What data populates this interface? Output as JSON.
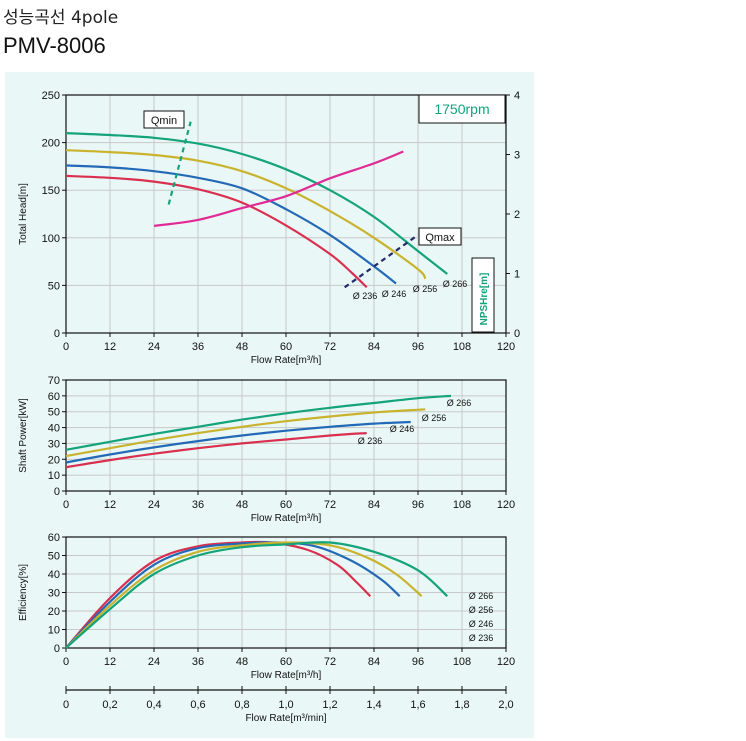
{
  "header": {
    "subtitle": "성능곡선 4pole",
    "model": "PMV-8006"
  },
  "rpm_label": "1750rpm",
  "colors": {
    "d236": "#d93050",
    "d246": "#2469b6",
    "d256": "#c9b32e",
    "d266": "#14a37a",
    "npsh": "#e02a95",
    "bg": "#e9f8f6"
  },
  "chart_data": [
    {
      "type": "line",
      "id": "head",
      "xlabel": "Flow Rate[m³/h]",
      "ylabel": "Total Head[m]",
      "y2label": "NPSHre[m]",
      "xlim": [
        0,
        120
      ],
      "ylim": [
        0,
        250
      ],
      "y2lim": [
        0,
        4
      ],
      "xticks": [
        0,
        12,
        24,
        36,
        48,
        60,
        72,
        84,
        96,
        108,
        120
      ],
      "yticks": [
        0,
        50,
        100,
        150,
        200,
        250
      ],
      "y2ticks": [
        0,
        1,
        2,
        3,
        4
      ],
      "annotations": [
        "Qmin",
        "Qmax",
        "1750rpm"
      ],
      "series": [
        {
          "name": "Ø 236",
          "x": [
            0,
            12,
            24,
            36,
            48,
            60,
            72,
            78,
            82
          ],
          "y": [
            165,
            163,
            159,
            151,
            137,
            113,
            83,
            63,
            48
          ]
        },
        {
          "name": "Ø 246",
          "x": [
            0,
            12,
            24,
            36,
            48,
            60,
            72,
            84,
            90
          ],
          "y": [
            176,
            174,
            170,
            163,
            152,
            130,
            103,
            70,
            52
          ]
        },
        {
          "name": "Ø 256",
          "x": [
            0,
            12,
            24,
            36,
            48,
            60,
            72,
            84,
            96,
            98
          ],
          "y": [
            192,
            190,
            187,
            181,
            170,
            152,
            128,
            100,
            67,
            57
          ]
        },
        {
          "name": "Ø 266",
          "x": [
            0,
            12,
            24,
            36,
            48,
            60,
            72,
            84,
            96,
            104
          ],
          "y": [
            210,
            208,
            205,
            199,
            188,
            172,
            150,
            122,
            86,
            62
          ]
        }
      ],
      "npsh": {
        "x": [
          24,
          36,
          48,
          60,
          72,
          84,
          92
        ],
        "y": [
          1.8,
          1.9,
          2.1,
          2.3,
          2.6,
          2.85,
          3.05
        ]
      },
      "qmin": {
        "x": [
          28,
          34
        ],
        "y": [
          135,
          222
        ]
      },
      "qmax": {
        "x": [
          76,
          96
        ],
        "y": [
          48,
          103
        ]
      }
    },
    {
      "type": "line",
      "id": "power",
      "xlabel": "Flow Rate[m³/h]",
      "ylabel": "Shaft Power[kW]",
      "xlim": [
        0,
        120
      ],
      "ylim": [
        0,
        70
      ],
      "xticks": [
        0,
        12,
        24,
        36,
        48,
        60,
        72,
        84,
        96,
        108,
        120
      ],
      "yticks": [
        0,
        10,
        20,
        30,
        40,
        50,
        60,
        70
      ],
      "series": [
        {
          "name": "Ø 236",
          "x": [
            0,
            12,
            24,
            36,
            48,
            60,
            72,
            78,
            82
          ],
          "y": [
            15,
            19.5,
            23.5,
            27,
            30,
            32.5,
            35,
            36,
            36.5
          ]
        },
        {
          "name": "Ø 246",
          "x": [
            0,
            12,
            24,
            36,
            48,
            60,
            72,
            84,
            94
          ],
          "y": [
            18,
            23,
            27.5,
            31.5,
            35,
            38,
            40.5,
            42.5,
            43.5
          ]
        },
        {
          "name": "Ø 256",
          "x": [
            0,
            12,
            24,
            36,
            48,
            60,
            72,
            84,
            98
          ],
          "y": [
            22,
            27,
            32,
            36.5,
            40.5,
            44,
            47,
            49.5,
            51.5
          ]
        },
        {
          "name": "Ø 266",
          "x": [
            0,
            12,
            24,
            36,
            48,
            60,
            72,
            84,
            96,
            105
          ],
          "y": [
            26,
            31,
            36,
            40.5,
            45,
            49,
            52.5,
            55.5,
            58.5,
            60
          ]
        }
      ]
    },
    {
      "type": "line",
      "id": "efficiency",
      "xlabel": "Flow Rate[m³/h]",
      "ylabel": "Efficiency[%]",
      "xlim": [
        0,
        120
      ],
      "ylim": [
        0,
        60
      ],
      "xticks": [
        0,
        12,
        24,
        36,
        48,
        60,
        72,
        84,
        96,
        108,
        120
      ],
      "yticks": [
        0,
        10,
        20,
        30,
        40,
        50,
        60
      ],
      "series": [
        {
          "name": "Ø 236",
          "x": [
            0,
            12,
            24,
            36,
            48,
            56,
            66,
            74,
            79,
            83
          ],
          "y": [
            0,
            27,
            47,
            55,
            57,
            57,
            53,
            45,
            36,
            28
          ]
        },
        {
          "name": "Ø 246",
          "x": [
            0,
            12,
            24,
            36,
            48,
            58,
            68,
            78,
            86,
            91
          ],
          "y": [
            0,
            25,
            45,
            54,
            56.5,
            57,
            55,
            47,
            37,
            28
          ]
        },
        {
          "name": "Ø 256",
          "x": [
            0,
            12,
            24,
            36,
            48,
            60,
            72,
            82,
            90,
            97
          ],
          "y": [
            0,
            23,
            42,
            52,
            55.5,
            57,
            55.5,
            49,
            40,
            28
          ]
        },
        {
          "name": "Ø 266",
          "x": [
            0,
            12,
            24,
            36,
            48,
            60,
            72,
            84,
            96,
            104
          ],
          "y": [
            0,
            21,
            40,
            50,
            54.5,
            56,
            57,
            52,
            42,
            28
          ]
        }
      ]
    },
    {
      "type": "axis",
      "id": "flow_min",
      "xlabel": "Flow Rate[m³/min]",
      "xlim": [
        0,
        2
      ],
      "xticks": [
        "0",
        "0,2",
        "0,4",
        "0,6",
        "0,8",
        "1,0",
        "1,2",
        "1,4",
        "1,6",
        "1,8",
        "2,0"
      ]
    }
  ]
}
